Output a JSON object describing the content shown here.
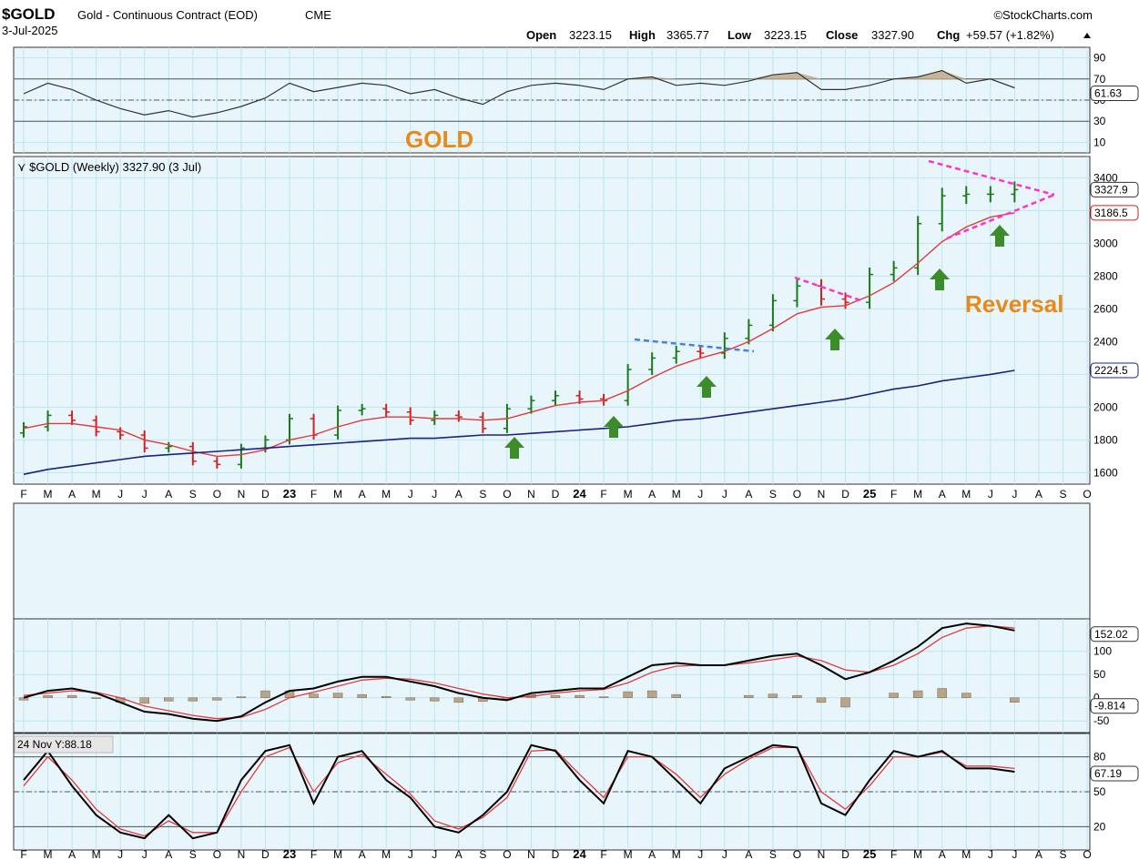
{
  "header": {
    "symbol": "$GOLD",
    "description": "Gold - Continuous Contract (EOD)",
    "exchange": "CME",
    "date": "3-Jul-2025",
    "brand": "©StockCharts.com",
    "ohlc": {
      "open_label": "Open",
      "open": "3223.15",
      "high_label": "High",
      "high": "3365.77",
      "low_label": "Low",
      "low": "3223.15",
      "close_label": "Close",
      "close": "3327.90",
      "chg_label": "Chg",
      "chg": "+59.57 (+1.82%)"
    }
  },
  "colors": {
    "up": "#1a7a1a",
    "down": "#d42020",
    "sma_short": "#e23a3a",
    "sma_long": "#1a237e",
    "trend_magenta": "#ff33cc",
    "trend_blue": "#4a7fe0",
    "arrow": "#3c8c2a",
    "callout": "#e88a1a",
    "hist": "#b8a488"
  },
  "annotations": {
    "gold_label": "GOLD",
    "reversal_label": "Reversal"
  },
  "chart_data": [
    {
      "type": "line",
      "name": "rsi",
      "yticks": [
        10,
        30,
        50,
        70,
        90
      ],
      "ylim": [
        0,
        100
      ],
      "last_value": "61.63",
      "x": [
        "2022-02",
        "2022-03",
        "2022-04",
        "2022-05",
        "2022-06",
        "2022-07",
        "2022-08",
        "2022-09",
        "2022-10",
        "2022-11",
        "2022-12",
        "2023-01",
        "2023-02",
        "2023-03",
        "2023-04",
        "2023-05",
        "2023-06",
        "2023-07",
        "2023-08",
        "2023-09",
        "2023-10",
        "2023-11",
        "2023-12",
        "2024-01",
        "2024-02",
        "2024-03",
        "2024-04",
        "2024-05",
        "2024-06",
        "2024-07",
        "2024-08",
        "2024-09",
        "2024-10",
        "2024-11",
        "2024-12",
        "2025-01",
        "2025-02",
        "2025-03",
        "2025-04",
        "2025-05",
        "2025-06",
        "2025-07"
      ],
      "values": [
        56,
        66,
        60,
        50,
        42,
        36,
        40,
        34,
        38,
        44,
        52,
        66,
        58,
        62,
        66,
        64,
        56,
        60,
        52,
        46,
        58,
        64,
        66,
        64,
        60,
        70,
        72,
        64,
        66,
        64,
        68,
        74,
        76,
        60,
        60,
        64,
        70,
        72,
        78,
        66,
        70,
        61.63
      ]
    },
    {
      "type": "bar",
      "name": "price",
      "title": "$GOLD (Weekly) 3327.90 (3 Jul)",
      "yticks": [
        1600,
        1800,
        2000,
        2200,
        2400,
        2600,
        2800,
        3000,
        3200,
        3400
      ],
      "ylim": [
        1530,
        3530
      ],
      "last_labels": [
        "3327.9",
        "3186.5",
        "2224.5"
      ],
      "month_labels": [
        "F",
        "M",
        "A",
        "M",
        "J",
        "J",
        "A",
        "S",
        "O",
        "N",
        "D",
        "23",
        "F",
        "M",
        "A",
        "M",
        "J",
        "J",
        "A",
        "S",
        "O",
        "N",
        "D",
        "24",
        "F",
        "M",
        "A",
        "M",
        "J",
        "J",
        "A",
        "S",
        "O",
        "N",
        "D",
        "25",
        "F",
        "M",
        "A",
        "M",
        "J",
        "J",
        "A",
        "S",
        "O"
      ],
      "x": [
        "2022-02",
        "2022-03",
        "2022-04",
        "2022-05",
        "2022-06",
        "2022-07",
        "2022-08",
        "2022-09",
        "2022-10",
        "2022-11",
        "2022-12",
        "2023-01",
        "2023-02",
        "2023-03",
        "2023-04",
        "2023-05",
        "2023-06",
        "2023-07",
        "2023-08",
        "2023-09",
        "2023-10",
        "2023-11",
        "2023-12",
        "2024-01",
        "2024-02",
        "2024-03",
        "2024-04",
        "2024-05",
        "2024-06",
        "2024-07",
        "2024-08",
        "2024-09",
        "2024-10",
        "2024-11",
        "2024-12",
        "2025-01",
        "2025-02",
        "2025-03",
        "2025-04",
        "2025-05",
        "2025-06",
        "2025-07"
      ],
      "close": [
        1880,
        1950,
        1920,
        1850,
        1830,
        1750,
        1760,
        1670,
        1650,
        1750,
        1800,
        1930,
        1830,
        1980,
        1990,
        1970,
        1920,
        1950,
        1940,
        1870,
        1990,
        2040,
        2070,
        2050,
        2040,
        2230,
        2300,
        2340,
        2330,
        2420,
        2500,
        2650,
        2740,
        2660,
        2640,
        2810,
        2850,
        3120,
        3290,
        3300,
        3300,
        3327.9
      ],
      "sma_short": [
        1870,
        1900,
        1900,
        1880,
        1860,
        1800,
        1770,
        1730,
        1700,
        1710,
        1740,
        1800,
        1830,
        1880,
        1920,
        1940,
        1940,
        1930,
        1930,
        1920,
        1930,
        1970,
        2010,
        2030,
        2040,
        2100,
        2180,
        2250,
        2300,
        2340,
        2400,
        2480,
        2570,
        2610,
        2620,
        2680,
        2760,
        2880,
        3010,
        3100,
        3160,
        3186.5
      ],
      "sma_long": [
        1590,
        1620,
        1640,
        1660,
        1680,
        1700,
        1710,
        1720,
        1730,
        1740,
        1750,
        1760,
        1770,
        1780,
        1790,
        1800,
        1810,
        1810,
        1820,
        1830,
        1830,
        1840,
        1850,
        1860,
        1870,
        1880,
        1900,
        1920,
        1930,
        1950,
        1970,
        1990,
        2010,
        2030,
        2050,
        2080,
        2110,
        2130,
        2160,
        2180,
        2200,
        2224.5
      ]
    },
    {
      "type": "line",
      "name": "macd",
      "yticks": [
        -50,
        0,
        50,
        100
      ],
      "ylim": [
        -75,
        170
      ],
      "last_labels": [
        "152.02",
        "-9.814"
      ],
      "x": [
        "2022-02",
        "2022-03",
        "2022-04",
        "2022-05",
        "2022-06",
        "2022-07",
        "2022-08",
        "2022-09",
        "2022-10",
        "2022-11",
        "2022-12",
        "2023-01",
        "2023-02",
        "2023-03",
        "2023-04",
        "2023-05",
        "2023-06",
        "2023-07",
        "2023-08",
        "2023-09",
        "2023-10",
        "2023-11",
        "2023-12",
        "2024-01",
        "2024-02",
        "2024-03",
        "2024-04",
        "2024-05",
        "2024-06",
        "2024-07",
        "2024-08",
        "2024-09",
        "2024-10",
        "2024-11",
        "2024-12",
        "2025-01",
        "2025-02",
        "2025-03",
        "2025-04",
        "2025-05",
        "2025-06",
        "2025-07"
      ],
      "macd": [
        0,
        15,
        20,
        10,
        -10,
        -30,
        -35,
        -45,
        -50,
        -40,
        -10,
        15,
        20,
        35,
        45,
        45,
        35,
        25,
        10,
        0,
        -5,
        10,
        15,
        20,
        20,
        45,
        70,
        75,
        70,
        70,
        80,
        90,
        95,
        70,
        40,
        55,
        80,
        110,
        150,
        160,
        155,
        145
      ],
      "signal": [
        5,
        10,
        15,
        12,
        0,
        -18,
        -28,
        -38,
        -45,
        -42,
        -25,
        0,
        12,
        25,
        38,
        42,
        40,
        32,
        20,
        8,
        0,
        3,
        10,
        15,
        18,
        32,
        55,
        68,
        70,
        70,
        75,
        82,
        90,
        80,
        60,
        55,
        70,
        95,
        130,
        150,
        155,
        150
      ],
      "hist": [
        -5,
        5,
        5,
        -2,
        -10,
        -12,
        -7,
        -7,
        -5,
        2,
        15,
        15,
        8,
        10,
        7,
        3,
        -5,
        -7,
        -10,
        -8,
        -5,
        7,
        5,
        5,
        2,
        13,
        15,
        7,
        0,
        0,
        5,
        8,
        5,
        -10,
        -20,
        0,
        10,
        15,
        20,
        10,
        0,
        -9.814
      ]
    },
    {
      "type": "line",
      "name": "stochastic",
      "yticks": [
        20,
        50,
        80
      ],
      "ylim": [
        0,
        100
      ],
      "last_value": "67.19",
      "tooltip": "24 Nov Y:88.18",
      "x": [
        "2022-02",
        "2022-03",
        "2022-04",
        "2022-05",
        "2022-06",
        "2022-07",
        "2022-08",
        "2022-09",
        "2022-10",
        "2022-11",
        "2022-12",
        "2023-01",
        "2023-02",
        "2023-03",
        "2023-04",
        "2023-05",
        "2023-06",
        "2023-07",
        "2023-08",
        "2023-09",
        "2023-10",
        "2023-11",
        "2023-12",
        "2024-01",
        "2024-02",
        "2024-03",
        "2024-04",
        "2024-05",
        "2024-06",
        "2024-07",
        "2024-08",
        "2024-09",
        "2024-10",
        "2024-11",
        "2024-12",
        "2025-01",
        "2025-02",
        "2025-03",
        "2025-04",
        "2025-05",
        "2025-06",
        "2025-07"
      ],
      "k": [
        60,
        85,
        55,
        30,
        15,
        10,
        30,
        10,
        15,
        60,
        85,
        90,
        40,
        80,
        85,
        60,
        45,
        20,
        15,
        30,
        50,
        90,
        85,
        60,
        40,
        85,
        80,
        60,
        40,
        70,
        80,
        90,
        88,
        40,
        30,
        60,
        85,
        80,
        85,
        70,
        70,
        67.19
      ],
      "d": [
        55,
        80,
        60,
        35,
        18,
        12,
        25,
        15,
        15,
        50,
        80,
        88,
        50,
        75,
        82,
        65,
        48,
        25,
        18,
        28,
        45,
        85,
        86,
        65,
        45,
        80,
        80,
        65,
        45,
        65,
        78,
        88,
        88,
        50,
        35,
        55,
        80,
        80,
        84,
        72,
        72,
        70
      ]
    }
  ]
}
